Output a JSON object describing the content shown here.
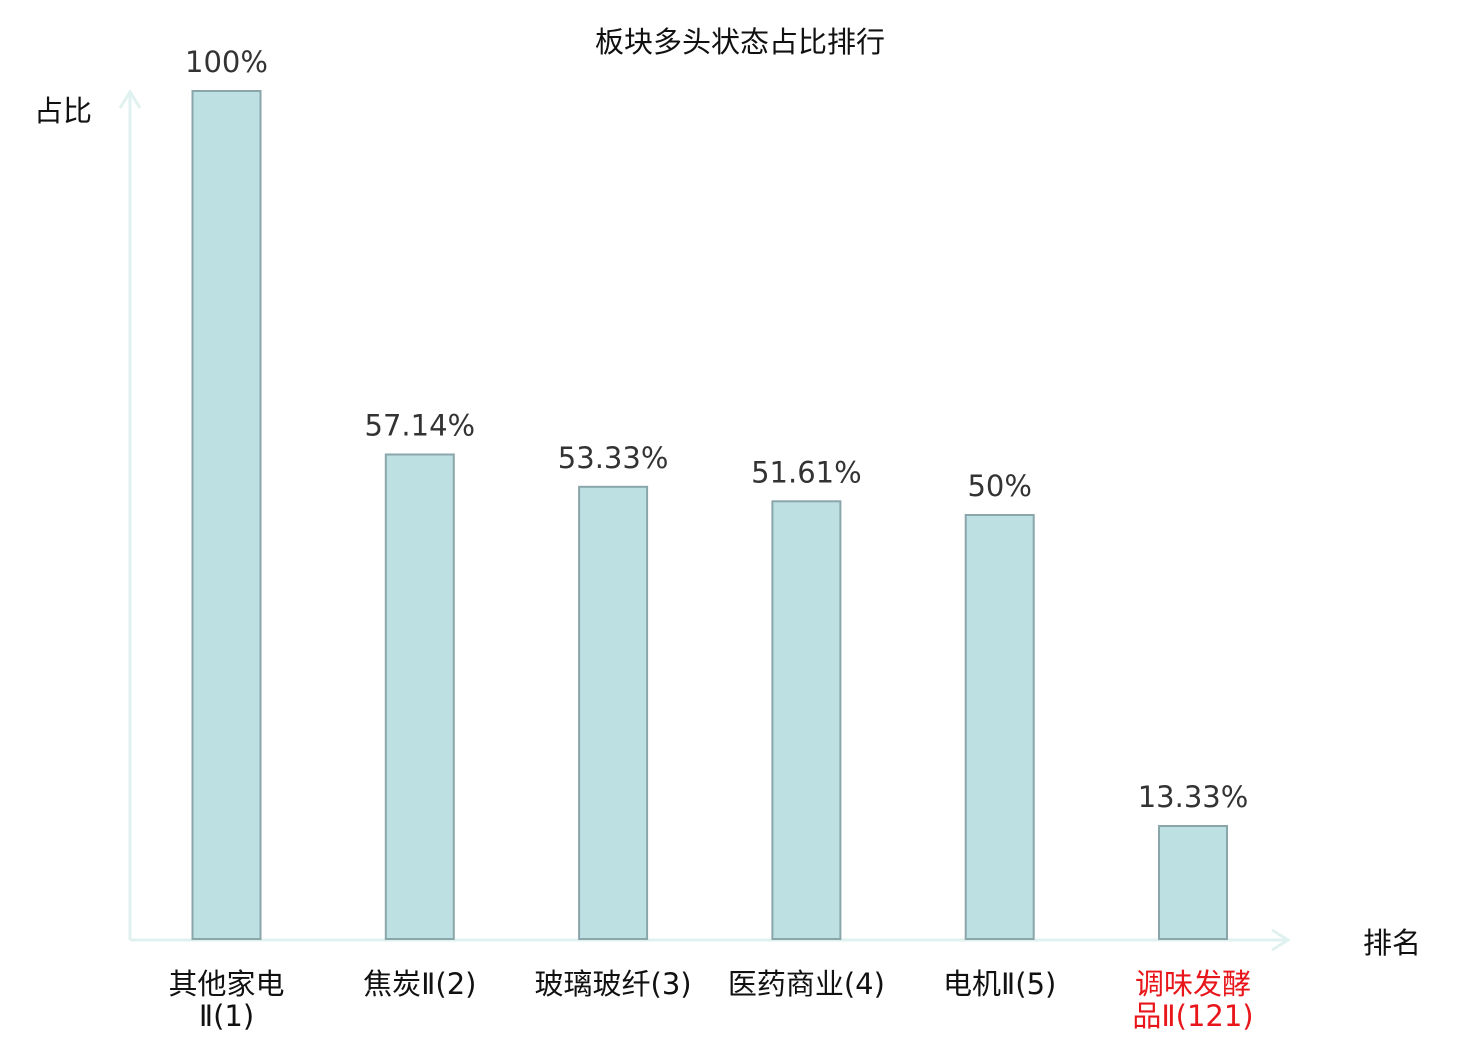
{
  "chart_data": {
    "type": "bar",
    "title": "板块多头状态占比排行",
    "ylabel": "占比",
    "xlabel": "排名",
    "ylim": [
      0,
      100
    ],
    "grid": false,
    "categories": [
      "其他家电Ⅱ(1)",
      "焦炭Ⅱ(2)",
      "玻璃玻纤(3)",
      "医药商业(4)",
      "电机Ⅱ(5)",
      "调味发酵品Ⅱ(121)"
    ],
    "category_lines": [
      [
        "其他家电",
        "Ⅱ(1)"
      ],
      [
        "焦炭Ⅱ(2)"
      ],
      [
        "玻璃玻纤(3)"
      ],
      [
        "医药商业(4)"
      ],
      [
        "电机Ⅱ(5)"
      ],
      [
        "调味发酵",
        "品Ⅱ(121)"
      ]
    ],
    "values": [
      100,
      57.14,
      53.33,
      51.61,
      50,
      13.33
    ],
    "data_labels": [
      "100%",
      "57.14%",
      "53.33%",
      "51.61%",
      "50%",
      "13.33%"
    ],
    "highlight_index": 5,
    "colors": {
      "bar_fill": "#bde0e3",
      "bar_stroke": "#8aa6ab",
      "axis": "#e0f2ef",
      "text": "#333333",
      "label": "#111111",
      "highlight": "#e8161b"
    }
  }
}
